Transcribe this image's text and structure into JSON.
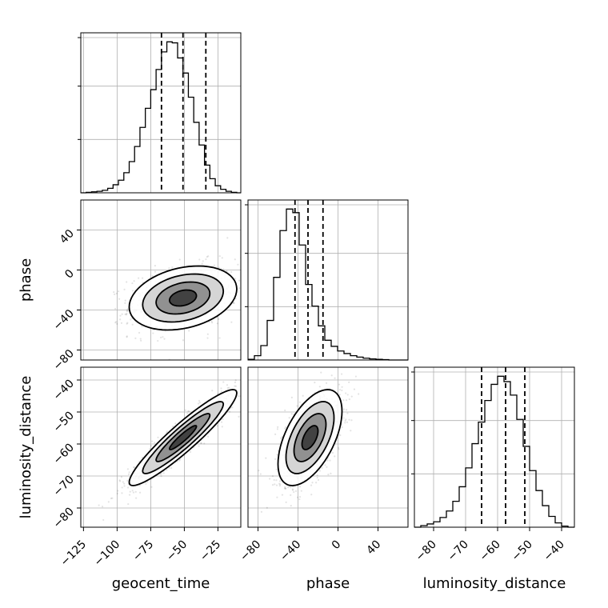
{
  "chart_data": {
    "type": "corner",
    "parameters": [
      "geocent_time",
      "phase",
      "luminosity_distance"
    ],
    "axis_labels": [
      "geocent_time",
      "phase",
      "luminosity_distance"
    ],
    "ranges": {
      "geocent_time": [
        -127,
        -8
      ],
      "phase": [
        -90,
        70
      ],
      "luminosity_distance": [
        -86,
        -36
      ]
    },
    "ticks": {
      "geocent_time": [
        -125,
        -100,
        -75,
        -50,
        -25
      ],
      "phase": [
        -80,
        -40,
        0,
        40
      ],
      "luminosity_distance": [
        -80,
        -70,
        -60,
        -50,
        -40
      ]
    },
    "tick_labels": {
      "geocent_time": [
        "−125",
        "−100",
        "−75",
        "−50",
        "−25"
      ],
      "phase": [
        "−80",
        "−40",
        "0",
        "40"
      ],
      "luminosity_distance": [
        "−80",
        "−70",
        "−60",
        "−50",
        "−40"
      ]
    },
    "quantiles": {
      "geocent_time": [
        -67,
        -51,
        -34
      ],
      "phase": [
        -43,
        -30,
        -15
      ],
      "luminosity_distance": [
        -65,
        -57.5,
        -51.5
      ]
    },
    "histograms": {
      "geocent_time": {
        "bin_edges": [
          -127,
          -123,
          -119,
          -115,
          -111,
          -107,
          -103,
          -99,
          -95,
          -91,
          -87,
          -83,
          -79,
          -75,
          -71,
          -67,
          -63,
          -59,
          -55,
          -51,
          -47,
          -43,
          -39,
          -35,
          -31,
          -27,
          -23,
          -19,
          -15,
          -11,
          -8
        ],
        "counts": [
          0,
          1,
          2,
          3,
          5,
          9,
          16,
          25,
          40,
          62,
          92,
          130,
          168,
          205,
          245,
          280,
          300,
          298,
          268,
          238,
          190,
          140,
          95,
          55,
          28,
          14,
          7,
          3,
          1,
          0
        ]
      },
      "phase": {
        "bin_edges": [
          -90,
          -83.6,
          -77.2,
          -70.8,
          -64.4,
          -58,
          -51.6,
          -45.2,
          -38.8,
          -32.4,
          -26,
          -19.6,
          -13.2,
          -6.8,
          -0.4,
          6,
          12.4,
          18.8,
          25.2,
          31.6,
          38,
          44.4,
          50.8,
          57.2,
          63.6,
          70
        ],
        "counts": [
          2,
          12,
          40,
          110,
          230,
          360,
          420,
          410,
          320,
          210,
          150,
          95,
          55,
          38,
          25,
          18,
          12,
          8,
          5,
          3,
          2,
          1,
          0,
          0,
          0
        ]
      },
      "luminosity_distance": {
        "bin_edges": [
          -86,
          -84,
          -82,
          -80,
          -78,
          -76,
          -74,
          -72,
          -70,
          -68,
          -66,
          -64,
          -62,
          -60,
          -58,
          -56,
          -54,
          -52,
          -50,
          -48,
          -46,
          -44,
          -42,
          -40,
          -38,
          -36
        ],
        "counts": [
          0,
          3,
          6,
          10,
          18,
          30,
          48,
          75,
          110,
          155,
          195,
          235,
          265,
          280,
          270,
          245,
          200,
          150,
          105,
          68,
          40,
          20,
          8,
          2,
          0
        ]
      }
    },
    "pairs": [
      {
        "x": "geocent_time",
        "y": "phase",
        "mean": [
          -51,
          -28
        ],
        "std": [
          20,
          16
        ],
        "corr": 0.28
      },
      {
        "x": "geocent_time",
        "y": "luminosity_distance",
        "mean": [
          -51,
          -58
        ],
        "std": [
          20,
          7.5
        ],
        "corr": 0.93
      },
      {
        "x": "phase",
        "y": "luminosity_distance",
        "mean": [
          -28,
          -58
        ],
        "std": [
          16,
          7.5
        ],
        "corr": 0.55
      }
    ],
    "contour_levels_sigma": [
      0.5,
      1.0,
      1.5,
      2.0
    ],
    "grid": true,
    "legend": "none",
    "title": ""
  }
}
